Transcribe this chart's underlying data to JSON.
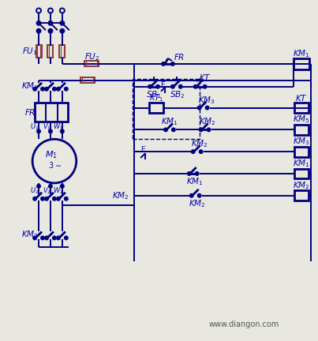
{
  "bg_color": "#e8e8e0",
  "line_color": "#000080",
  "fuse_color": "#8B3A3A",
  "label_color": "#0000AA",
  "watermark": "www.diangon.com",
  "fig_width": 4.03,
  "fig_height": 4.32,
  "dpi": 100,
  "lw": 1.4,
  "lw_thick": 2.0
}
